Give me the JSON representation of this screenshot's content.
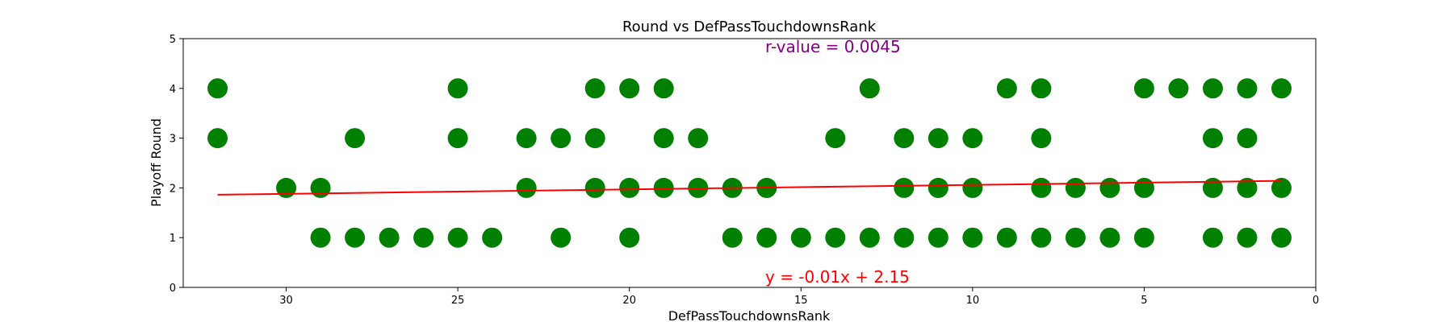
{
  "chart_data": {
    "type": "scatter",
    "title": "Round vs DefPassTouchdownsRank",
    "xlabel": "DefPassTouchdownsRank",
    "ylabel": "Playoff Round",
    "xlim": [
      33,
      0
    ],
    "ylim": [
      0,
      5
    ],
    "x_inverted": true,
    "xticks": [
      30,
      25,
      20,
      15,
      10,
      5,
      0
    ],
    "yticks": [
      0,
      1,
      2,
      3,
      4,
      5
    ],
    "grid": false,
    "legend": "none",
    "point_color": "#008000",
    "line_color": "#ff0000",
    "r_text_color": "#800080",
    "annotations": {
      "r_value": "r-value = 0.0045",
      "equation": "y = -0.01x + 2.15"
    },
    "regression": {
      "slope": -0.009,
      "intercept": 2.15,
      "x_range": [
        32,
        1
      ]
    },
    "points": [
      {
        "x": 32,
        "y": 4
      },
      {
        "x": 32,
        "y": 3
      },
      {
        "x": 30,
        "y": 2
      },
      {
        "x": 29,
        "y": 2
      },
      {
        "x": 29,
        "y": 1
      },
      {
        "x": 28,
        "y": 3
      },
      {
        "x": 28,
        "y": 1
      },
      {
        "x": 27,
        "y": 1
      },
      {
        "x": 26,
        "y": 1
      },
      {
        "x": 25,
        "y": 4
      },
      {
        "x": 25,
        "y": 3
      },
      {
        "x": 25,
        "y": 1
      },
      {
        "x": 24,
        "y": 1
      },
      {
        "x": 23,
        "y": 3
      },
      {
        "x": 23,
        "y": 2
      },
      {
        "x": 22,
        "y": 3
      },
      {
        "x": 22,
        "y": 1
      },
      {
        "x": 21,
        "y": 4
      },
      {
        "x": 21,
        "y": 3
      },
      {
        "x": 21,
        "y": 2
      },
      {
        "x": 20,
        "y": 4
      },
      {
        "x": 20,
        "y": 2
      },
      {
        "x": 20,
        "y": 1
      },
      {
        "x": 19,
        "y": 4
      },
      {
        "x": 19,
        "y": 3
      },
      {
        "x": 19,
        "y": 2
      },
      {
        "x": 18,
        "y": 3
      },
      {
        "x": 18,
        "y": 2
      },
      {
        "x": 17,
        "y": 2
      },
      {
        "x": 17,
        "y": 1
      },
      {
        "x": 16,
        "y": 2
      },
      {
        "x": 16,
        "y": 1
      },
      {
        "x": 15,
        "y": 1
      },
      {
        "x": 14,
        "y": 3
      },
      {
        "x": 14,
        "y": 1
      },
      {
        "x": 13,
        "y": 4
      },
      {
        "x": 13,
        "y": 1
      },
      {
        "x": 12,
        "y": 3
      },
      {
        "x": 12,
        "y": 2
      },
      {
        "x": 12,
        "y": 1
      },
      {
        "x": 11,
        "y": 3
      },
      {
        "x": 11,
        "y": 2
      },
      {
        "x": 11,
        "y": 1
      },
      {
        "x": 10,
        "y": 3
      },
      {
        "x": 10,
        "y": 2
      },
      {
        "x": 10,
        "y": 1
      },
      {
        "x": 9,
        "y": 4
      },
      {
        "x": 9,
        "y": 1
      },
      {
        "x": 8,
        "y": 4
      },
      {
        "x": 8,
        "y": 3
      },
      {
        "x": 8,
        "y": 2
      },
      {
        "x": 8,
        "y": 1
      },
      {
        "x": 7,
        "y": 2
      },
      {
        "x": 7,
        "y": 1
      },
      {
        "x": 6,
        "y": 2
      },
      {
        "x": 6,
        "y": 1
      },
      {
        "x": 5,
        "y": 4
      },
      {
        "x": 5,
        "y": 2
      },
      {
        "x": 5,
        "y": 1
      },
      {
        "x": 4,
        "y": 4
      },
      {
        "x": 3,
        "y": 4
      },
      {
        "x": 3,
        "y": 3
      },
      {
        "x": 3,
        "y": 2
      },
      {
        "x": 3,
        "y": 1
      },
      {
        "x": 2,
        "y": 4
      },
      {
        "x": 2,
        "y": 3
      },
      {
        "x": 2,
        "y": 2
      },
      {
        "x": 2,
        "y": 1
      },
      {
        "x": 1,
        "y": 4
      },
      {
        "x": 1,
        "y": 2
      },
      {
        "x": 1,
        "y": 1
      }
    ]
  }
}
